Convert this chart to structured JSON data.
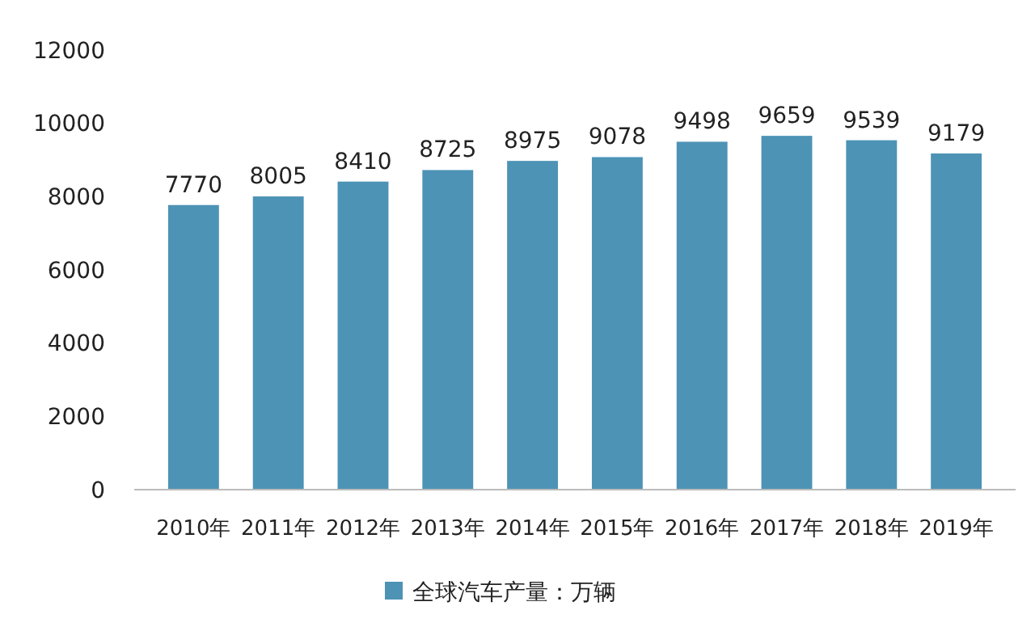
{
  "chart_data": {
    "type": "bar",
    "categories": [
      "2010年",
      "2011年",
      "2012年",
      "2013年",
      "2014年",
      "2015年",
      "2016年",
      "2017年",
      "2018年",
      "2019年"
    ],
    "series": [
      {
        "name": "全球汽车产量：万辆",
        "color": "#4d93b5",
        "values": [
          7770,
          8005,
          8410,
          8725,
          8975,
          9078,
          9498,
          9659,
          9539,
          9179
        ]
      }
    ],
    "ylim": [
      0,
      12000
    ],
    "yticks": [
      0,
      2000,
      4000,
      6000,
      8000,
      10000,
      12000
    ],
    "data_labels": true,
    "legend": "bottom"
  }
}
